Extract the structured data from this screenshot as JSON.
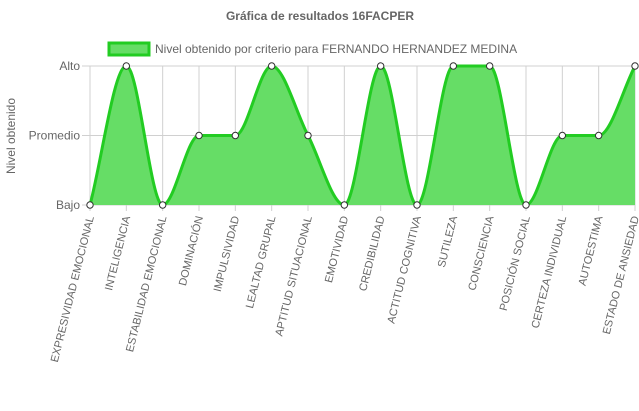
{
  "chart_data": {
    "type": "area",
    "title": "Gráfica de resultados 16FACPER",
    "ylabel": "Nivel obtenido",
    "xlabel": "",
    "y_levels": [
      "Bajo",
      "Promedio",
      "Alto"
    ],
    "ylim": [
      0,
      2
    ],
    "grid": true,
    "legend_position": "top",
    "categories": [
      "EXPRESIVIDAD EMOCIONAL",
      "INTELIGENCIA",
      "ESTABILIDAD EMOCIONAL",
      "DOMINACIÓN",
      "IMPULSIVIDAD",
      "LEALTAD GRUPAL",
      "APTITUD SITUACIONAL",
      "EMOTIVIDAD",
      "CREDIBILIDAD",
      "ACTITUD COGNITIVA",
      "SUTILEZA",
      "CONSCIENCIA",
      "POSICIÓN SOCIAL",
      "CERTEZA INDIVIDUAL",
      "AUTOESTIMA",
      "ESTADO DE ANSIEDAD"
    ],
    "series": [
      {
        "name": "Nivel obtenido por criterio para FERNANDO HERNANDEZ MEDINA",
        "values": [
          0,
          2,
          0,
          1,
          1,
          2,
          1,
          0,
          2,
          0,
          2,
          2,
          0,
          1,
          1,
          2
        ]
      }
    ],
    "colors": {
      "fill": "#66dd66",
      "stroke": "#22cc22",
      "grid": "#d0d0d0",
      "point_fill": "#ffffff",
      "point_stroke": "#333333"
    }
  }
}
